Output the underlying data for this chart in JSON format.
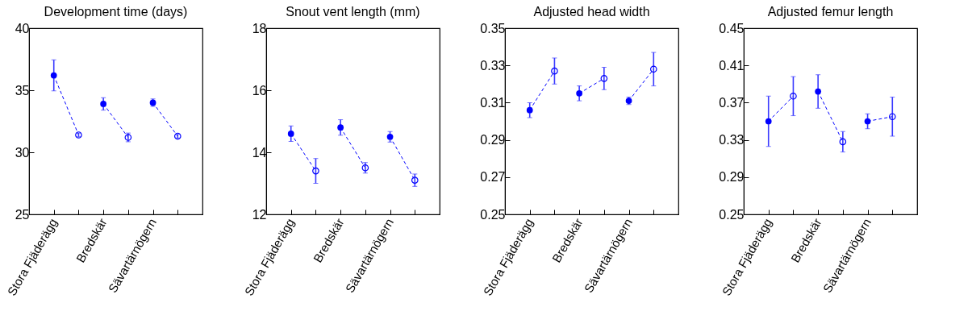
{
  "chart_data": [
    {
      "type": "line",
      "title": "Development time (days)",
      "categories": [
        "Stora Fjäderägg",
        null,
        "Bredskär",
        null,
        "Sävartärnögern",
        null
      ],
      "ylim": [
        25,
        40
      ],
      "yticks": [
        25,
        30,
        35,
        40
      ],
      "marker": "circle",
      "line_style": "dashed",
      "series": [
        {
          "color": "#0000ff",
          "values": [
            36.2,
            31.4,
            null,
            null,
            null,
            null
          ],
          "errors": [
            1.25,
            0.15,
            null,
            null,
            null,
            null
          ]
        },
        {
          "color": "#0000ff",
          "values": [
            null,
            null,
            33.9,
            31.2,
            null,
            null
          ],
          "errors": [
            null,
            null,
            0.5,
            0.35,
            null,
            null
          ]
        },
        {
          "color": "#0000ff",
          "values": [
            null,
            null,
            null,
            null,
            34.0,
            31.3
          ],
          "errors": [
            null,
            null,
            null,
            null,
            0.3,
            0.15
          ]
        }
      ]
    },
    {
      "type": "line",
      "title": "Snout vent length (mm)",
      "categories": [
        "Stora Fjäderägg",
        null,
        "Bredskär",
        null,
        "Sävartärnögern",
        null
      ],
      "ylim": [
        12,
        18
      ],
      "yticks": [
        12,
        14,
        16,
        18
      ],
      "marker": "circle",
      "line_style": "dashed",
      "series": [
        {
          "color": "#0000ff",
          "values": [
            14.6,
            13.4,
            null,
            null,
            null,
            null
          ],
          "errors": [
            0.25,
            0.4,
            null,
            null,
            null,
            null
          ]
        },
        {
          "color": "#0000ff",
          "values": [
            null,
            null,
            14.8,
            13.5,
            null,
            null
          ],
          "errors": [
            null,
            null,
            0.25,
            0.17,
            null,
            null
          ]
        },
        {
          "color": "#0000ff",
          "values": [
            null,
            null,
            null,
            null,
            14.5,
            13.1
          ],
          "errors": [
            null,
            null,
            null,
            null,
            0.17,
            0.2
          ]
        }
      ]
    },
    {
      "type": "line",
      "title": "Adjusted head width",
      "categories": [
        "Stora Fjäderägg",
        null,
        "Bredskär",
        null,
        "Sävartärnögern",
        null
      ],
      "ylim": [
        0.25,
        0.35
      ],
      "yticks": [
        0.25,
        0.27,
        0.29,
        0.31,
        0.33,
        0.35
      ],
      "marker": "circle",
      "line_style": "dashed",
      "series": [
        {
          "color": "#0000ff",
          "values": [
            0.306,
            0.327,
            null,
            null,
            null,
            null
          ],
          "errors": [
            0.004,
            0.007,
            null,
            null,
            null,
            null
          ]
        },
        {
          "color": "#0000ff",
          "values": [
            null,
            null,
            0.315,
            0.323,
            null,
            null
          ],
          "errors": [
            null,
            null,
            0.004,
            0.006,
            null,
            null
          ]
        },
        {
          "color": "#0000ff",
          "values": [
            null,
            null,
            null,
            null,
            0.311,
            0.328
          ],
          "errors": [
            null,
            null,
            null,
            null,
            0.002,
            0.009
          ]
        }
      ]
    },
    {
      "type": "line",
      "title": "Adjusted femur length",
      "categories": [
        "Stora Fjäderägg",
        null,
        "Bredskär",
        null,
        "Sävartärnögern",
        null
      ],
      "ylim": [
        0.25,
        0.45
      ],
      "yticks": [
        0.25,
        0.29,
        0.33,
        0.37,
        0.41,
        0.45
      ],
      "marker": "circle",
      "line_style": "dashed",
      "series": [
        {
          "color": "#0000ff",
          "values": [
            0.35,
            0.377,
            null,
            null,
            null,
            null
          ],
          "errors": [
            0.027,
            0.021,
            null,
            null,
            null,
            null
          ]
        },
        {
          "color": "#0000ff",
          "values": [
            null,
            null,
            0.382,
            0.328,
            null,
            null
          ],
          "errors": [
            null,
            null,
            0.018,
            0.011,
            null,
            null
          ]
        },
        {
          "color": "#0000ff",
          "values": [
            null,
            null,
            null,
            null,
            0.35,
            0.355
          ],
          "errors": [
            null,
            null,
            null,
            null,
            0.008,
            0.021
          ]
        }
      ]
    }
  ]
}
